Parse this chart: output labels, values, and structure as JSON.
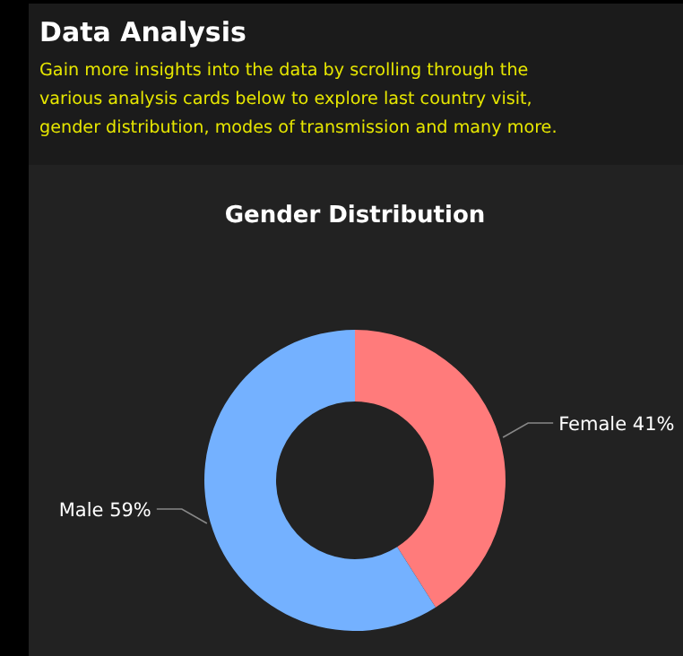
{
  "chart_data": {
    "type": "donut",
    "title": "Data Analysis",
    "subtitle": "Gain more insights into the data by scrolling through the various analysis cards below to explore last country visit, gender distribution, modes of transmission and many more.",
    "annotations": [
      "Gender Distribution"
    ],
    "categories": [
      "Female",
      "Male"
    ],
    "values": [
      41,
      59
    ],
    "colors": [
      "#ff7b7b",
      "#74b1ff"
    ],
    "value_labels": [
      "41%",
      "59%"
    ]
  }
}
